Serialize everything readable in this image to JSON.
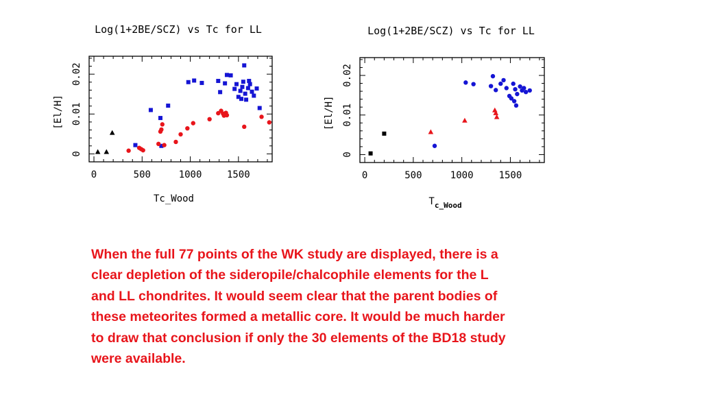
{
  "chart_data": [
    {
      "type": "scatter",
      "title": "Log(1+2BE/SCZ) vs Tc for LL",
      "xlabel": "Tc_Wood",
      "ylabel": "[El/H]",
      "xlim": [
        -50,
        1850
      ],
      "ylim": [
        -0.002,
        0.0245
      ],
      "xticks": [
        "0",
        "500",
        "1000",
        "1500"
      ],
      "yticks": [
        "0",
        "0.01",
        "0.02"
      ],
      "grid": false,
      "series": [
        {
          "marker": "triangle",
          "color": "#000000",
          "points": [
            [
              40,
              0.0005
            ],
            [
              130,
              0.0005
            ],
            [
              190,
              0.0053
            ]
          ]
        },
        {
          "marker": "square",
          "color": "#1515d4",
          "points": [
            [
              430,
              0.0022
            ],
            [
              590,
              0.011
            ],
            [
              690,
              0.009
            ],
            [
              700,
              0.002
            ],
            [
              770,
              0.0121
            ],
            [
              980,
              0.018
            ],
            [
              1040,
              0.0184
            ],
            [
              1120,
              0.0178
            ],
            [
              1290,
              0.0183
            ],
            [
              1310,
              0.0155
            ],
            [
              1360,
              0.0177
            ],
            [
              1380,
              0.0198
            ],
            [
              1420,
              0.0197
            ],
            [
              1460,
              0.0163
            ],
            [
              1480,
              0.0175
            ],
            [
              1500,
              0.0143
            ],
            [
              1520,
              0.0158
            ],
            [
              1530,
              0.0138
            ],
            [
              1540,
              0.0168
            ],
            [
              1550,
              0.0181
            ],
            [
              1560,
              0.0222
            ],
            [
              1570,
              0.0151
            ],
            [
              1580,
              0.0136
            ],
            [
              1600,
              0.0165
            ],
            [
              1610,
              0.0183
            ],
            [
              1620,
              0.0175
            ],
            [
              1640,
              0.0156
            ],
            [
              1660,
              0.0146
            ],
            [
              1690,
              0.0164
            ],
            [
              1720,
              0.0115
            ]
          ]
        },
        {
          "marker": "circle",
          "color": "#e8151b",
          "points": [
            [
              360,
              0.0008
            ],
            [
              470,
              0.0015
            ],
            [
              490,
              0.0012
            ],
            [
              510,
              0.0009
            ],
            [
              670,
              0.0025
            ],
            [
              690,
              0.0056
            ],
            [
              700,
              0.0061
            ],
            [
              710,
              0.0074
            ],
            [
              730,
              0.0022
            ],
            [
              850,
              0.003
            ],
            [
              900,
              0.0049
            ],
            [
              970,
              0.0064
            ],
            [
              1030,
              0.0077
            ],
            [
              1200,
              0.0087
            ],
            [
              1290,
              0.0102
            ],
            [
              1320,
              0.0108
            ],
            [
              1340,
              0.0101
            ],
            [
              1350,
              0.0096
            ],
            [
              1370,
              0.0103
            ],
            [
              1380,
              0.0097
            ],
            [
              1560,
              0.0068
            ],
            [
              1740,
              0.0093
            ],
            [
              1820,
              0.0079
            ]
          ]
        }
      ]
    },
    {
      "type": "scatter",
      "title": "Log(1+2BE/SCZ) vs Tc for LL",
      "xlabel": "T",
      "xlabel_sub": "c_Wood",
      "ylabel": "[El/H]",
      "xlim": [
        -50,
        1850
      ],
      "ylim": [
        -0.002,
        0.0245
      ],
      "xticks": [
        "0",
        "500",
        "1000",
        "1500"
      ],
      "yticks": [
        "0",
        "0.01",
        "0.02"
      ],
      "grid": false,
      "series": [
        {
          "marker": "square",
          "color": "#000000",
          "points": [
            [
              60,
              0.0003
            ],
            [
              200,
              0.0053
            ]
          ]
        },
        {
          "marker": "triangle",
          "color": "#e8151b",
          "points": [
            [
              680,
              0.0057
            ],
            [
              1030,
              0.0086
            ],
            [
              1340,
              0.0112
            ],
            [
              1350,
              0.0105
            ],
            [
              1360,
              0.0095
            ]
          ]
        },
        {
          "marker": "circle",
          "color": "#1515d4",
          "points": [
            [
              720,
              0.0022
            ],
            [
              1040,
              0.0182
            ],
            [
              1120,
              0.0178
            ],
            [
              1300,
              0.0173
            ],
            [
              1320,
              0.0198
            ],
            [
              1350,
              0.0163
            ],
            [
              1400,
              0.0179
            ],
            [
              1430,
              0.0188
            ],
            [
              1460,
              0.0168
            ],
            [
              1490,
              0.0148
            ],
            [
              1510,
              0.0142
            ],
            [
              1530,
              0.0179
            ],
            [
              1540,
              0.0135
            ],
            [
              1550,
              0.0165
            ],
            [
              1560,
              0.0124
            ],
            [
              1570,
              0.0153
            ],
            [
              1600,
              0.0172
            ],
            [
              1620,
              0.0162
            ],
            [
              1640,
              0.0168
            ],
            [
              1660,
              0.0158
            ],
            [
              1700,
              0.0162
            ]
          ]
        }
      ]
    }
  ],
  "caption": {
    "lines": [
      "When the full 77 points of the WK study are displayed, there is a",
      "clear depletion of the sideropile/chalcophile elements for the L",
      "and LL chondrites.  It would seem clear that the parent bodies of",
      "these meteorites formed a metallic core.  It would be much harder",
      "to draw that conclusion if only the 30 elements of the BD18 study",
      "were available."
    ]
  }
}
